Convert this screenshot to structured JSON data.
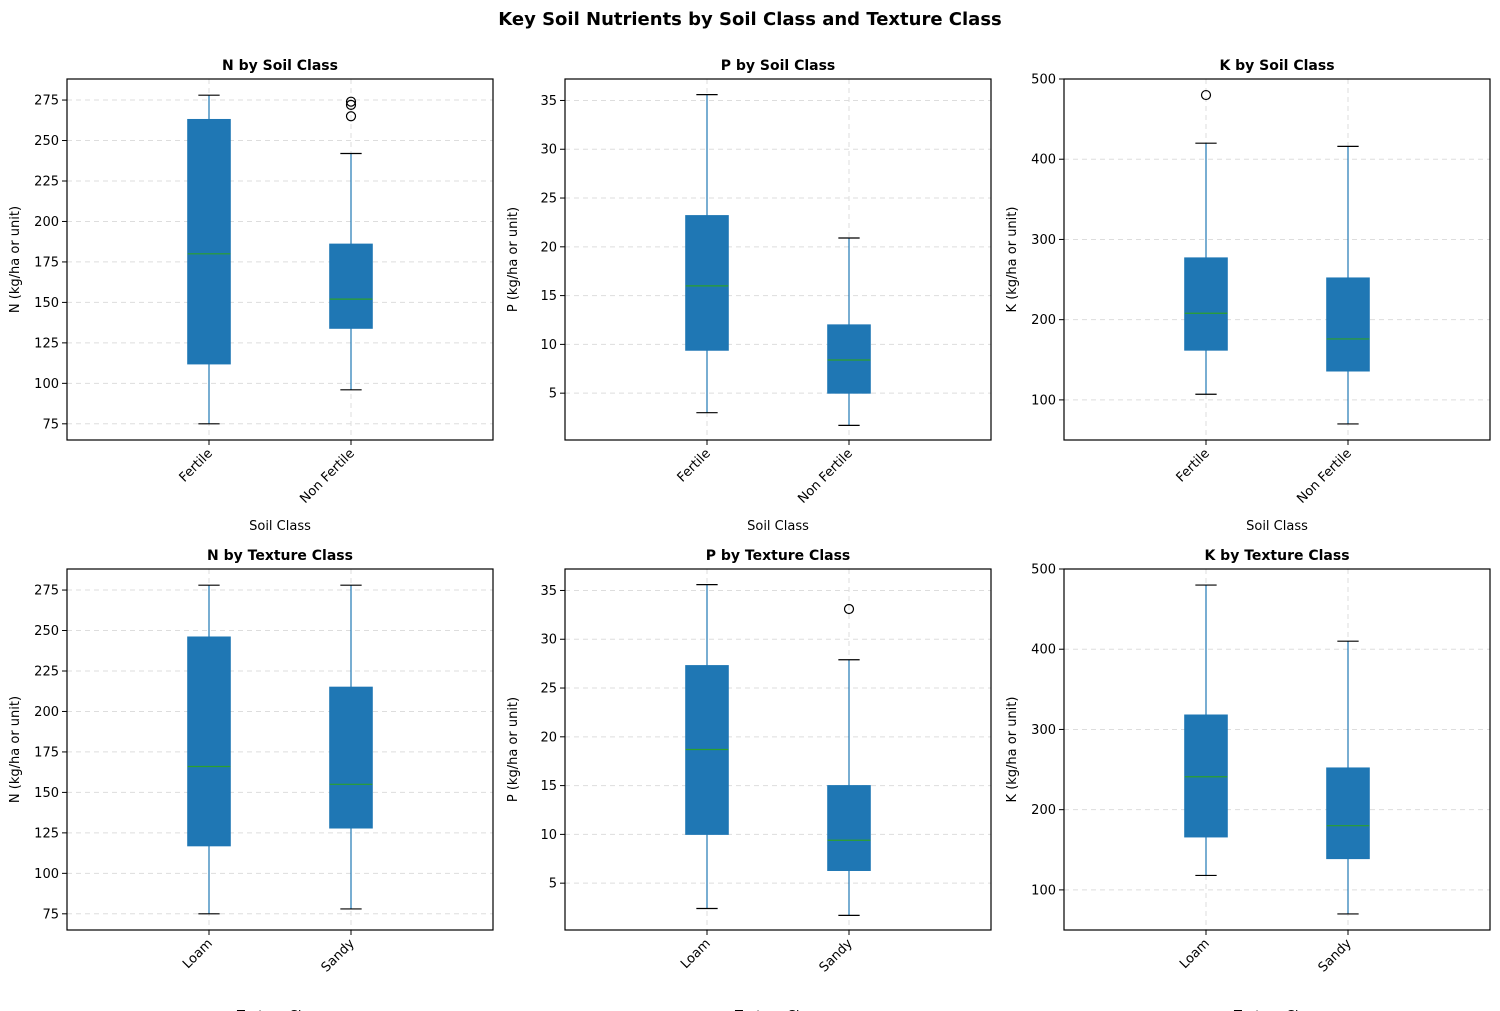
{
  "figure": {
    "title": "Key Soil Nutrients by Soil Class and Texture Class"
  },
  "colors": {
    "box_fill": "#1f77b4",
    "whisker": "#1f77b4",
    "median": "#2ca02c",
    "grid": "#dddddd",
    "axes": "#000000"
  },
  "chart_data": [
    {
      "type": "box",
      "title": "N by Soil Class",
      "xlabel": "Soil Class",
      "ylabel": "N (kg/ha or unit)",
      "ylim": [
        65,
        288
      ],
      "yticks": [
        75,
        100,
        125,
        150,
        175,
        200,
        225,
        250,
        275
      ],
      "grid": true,
      "categories": [
        "Fertile",
        "Non Fertile"
      ],
      "boxes": [
        {
          "whislo": 75,
          "q1": 112,
          "median": 180,
          "q3": 263,
          "whishi": 278,
          "fliers": []
        },
        {
          "whislo": 96,
          "q1": 134,
          "median": 152,
          "q3": 186,
          "whishi": 242,
          "fliers": [
            265,
            272,
            274
          ]
        }
      ]
    },
    {
      "type": "box",
      "title": "P by Soil Class",
      "xlabel": "Soil Class",
      "ylabel": "P (kg/ha or unit)",
      "ylim": [
        0.2,
        37.2
      ],
      "yticks": [
        5,
        10,
        15,
        20,
        25,
        30,
        35
      ],
      "grid": true,
      "categories": [
        "Fertile",
        "Non Fertile"
      ],
      "boxes": [
        {
          "whislo": 3,
          "q1": 9.4,
          "median": 16,
          "q3": 23.2,
          "whishi": 35.6,
          "fliers": []
        },
        {
          "whislo": 1.7,
          "q1": 5,
          "median": 8.4,
          "q3": 12,
          "whishi": 20.9,
          "fliers": []
        }
      ]
    },
    {
      "type": "box",
      "title": "K by Soil Class",
      "xlabel": "Soil Class",
      "ylabel": "K (kg/ha or unit)",
      "ylim": [
        50,
        500
      ],
      "yticks": [
        100,
        200,
        300,
        400,
        500
      ],
      "grid": true,
      "categories": [
        "Fertile",
        "Non Fertile"
      ],
      "boxes": [
        {
          "whislo": 107,
          "q1": 162,
          "median": 208,
          "q3": 277,
          "whishi": 420,
          "fliers": [
            480
          ]
        },
        {
          "whislo": 70,
          "q1": 136,
          "median": 176,
          "q3": 252,
          "whishi": 416,
          "fliers": []
        }
      ]
    },
    {
      "type": "box",
      "title": "N by Texture Class",
      "xlabel": "Texture Class",
      "ylabel": "N (kg/ha or unit)",
      "ylim": [
        65,
        288
      ],
      "yticks": [
        75,
        100,
        125,
        150,
        175,
        200,
        225,
        250,
        275
      ],
      "grid": true,
      "categories": [
        "Loam",
        "Sandy"
      ],
      "boxes": [
        {
          "whislo": 75,
          "q1": 117,
          "median": 166,
          "q3": 246,
          "whishi": 278,
          "fliers": []
        },
        {
          "whislo": 78,
          "q1": 128,
          "median": 155,
          "q3": 215,
          "whishi": 278,
          "fliers": []
        }
      ]
    },
    {
      "type": "box",
      "title": "P by Texture Class",
      "xlabel": "Texture Class",
      "ylabel": "P (kg/ha or unit)",
      "ylim": [
        0.2,
        37.2
      ],
      "yticks": [
        5,
        10,
        15,
        20,
        25,
        30,
        35
      ],
      "grid": true,
      "categories": [
        "Loam",
        "Sandy"
      ],
      "boxes": [
        {
          "whislo": 2.4,
          "q1": 10,
          "median": 18.7,
          "q3": 27.3,
          "whishi": 35.6,
          "fliers": []
        },
        {
          "whislo": 1.7,
          "q1": 6.3,
          "median": 9.4,
          "q3": 15,
          "whishi": 27.9,
          "fliers": [
            33.1
          ]
        }
      ]
    },
    {
      "type": "box",
      "title": "K by Texture Class",
      "xlabel": "Texture Class",
      "ylabel": "K (kg/ha or unit)",
      "ylim": [
        50,
        500
      ],
      "yticks": [
        100,
        200,
        300,
        400,
        500
      ],
      "grid": true,
      "categories": [
        "Loam",
        "Sandy"
      ],
      "boxes": [
        {
          "whislo": 118,
          "q1": 166,
          "median": 241,
          "q3": 318,
          "whishi": 480,
          "fliers": []
        },
        {
          "whislo": 70,
          "q1": 139,
          "median": 180,
          "q3": 252,
          "whishi": 410,
          "fliers": []
        }
      ]
    }
  ]
}
